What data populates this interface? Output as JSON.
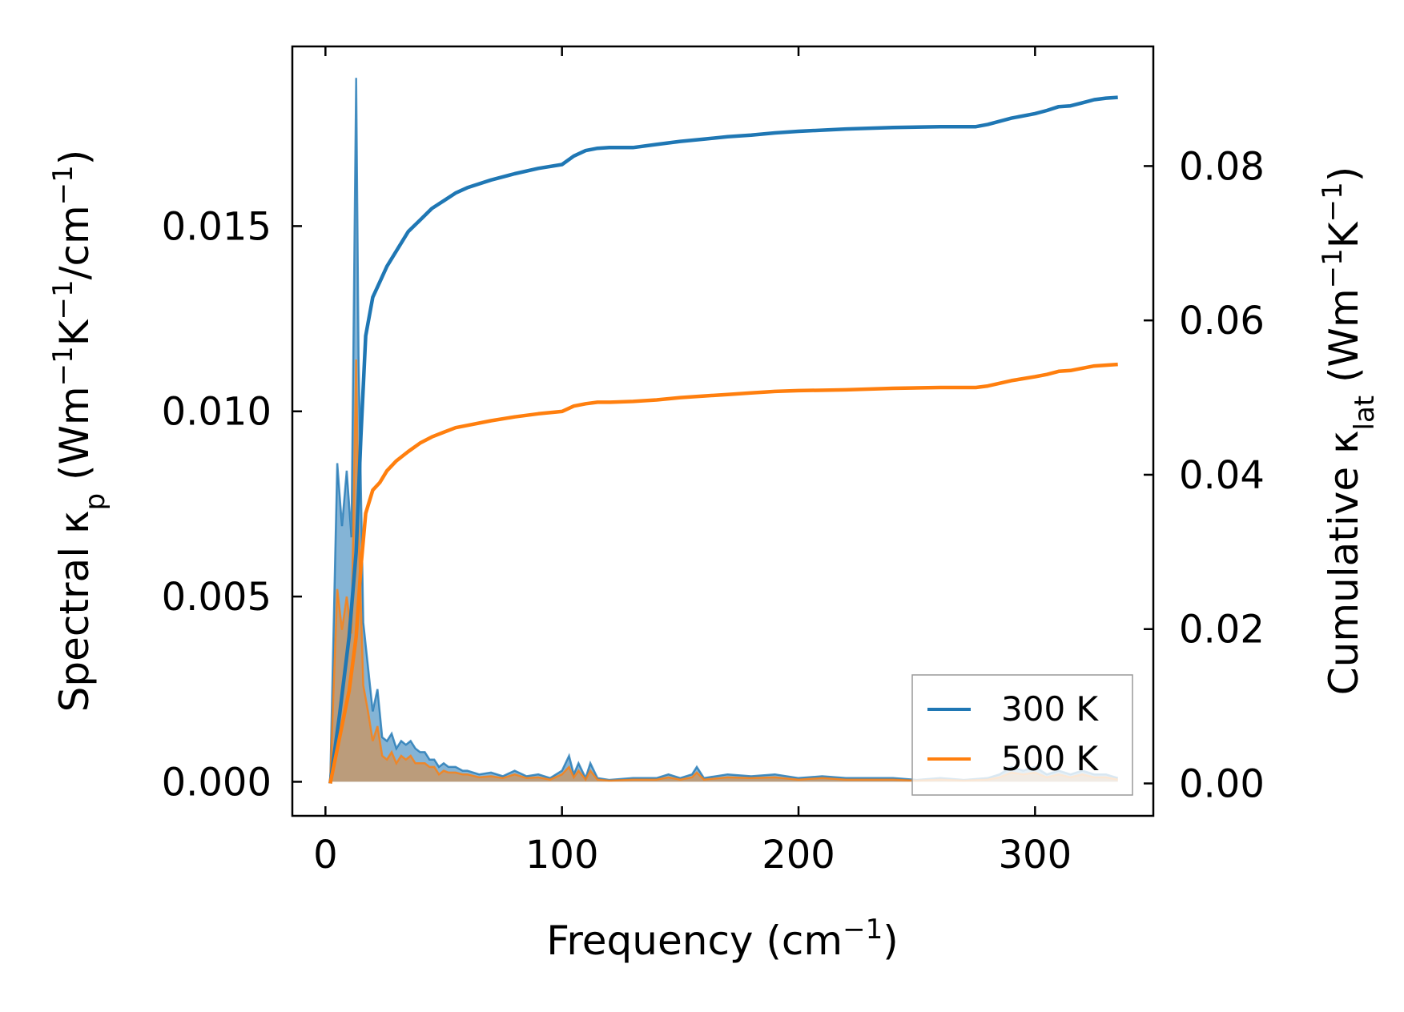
{
  "chart_data": {
    "type": "line",
    "xlabel_main": "Frequency (cm",
    "xlabel_sup": "−1",
    "xlabel_end": ")",
    "ylabel_left": {
      "prefix": "Spectral κ",
      "sub": "p",
      "mid1": " (Wm",
      "sup1": "−1",
      "mid2": "K",
      "sup2": "−1",
      "mid3": "/cm",
      "sup3": "−1",
      "end": ")"
    },
    "ylabel_right": {
      "prefix": "Cumulative κ",
      "sub": "lat",
      "mid1": " (Wm",
      "sup1": "−1",
      "mid2": "K",
      "sup2": "−1",
      "end": ")"
    },
    "xlim": [
      -14,
      350
    ],
    "ylim_left": [
      -0.00092,
      0.01985
    ],
    "ylim_right": [
      -0.0042,
      0.0955
    ],
    "xticks": [
      "0",
      "100",
      "200",
      "300"
    ],
    "xtick_values": [
      0,
      100,
      200,
      300
    ],
    "yticks_left": [
      "0.000",
      "0.005",
      "0.010",
      "0.015"
    ],
    "ytick_values_left": [
      0,
      0.005,
      0.01,
      0.015
    ],
    "yticks_right": [
      "0.00",
      "0.02",
      "0.04",
      "0.06",
      "0.08"
    ],
    "ytick_values_right": [
      0,
      0.02,
      0.04,
      0.06,
      0.08
    ],
    "legend_position": "lower right",
    "legend": [
      "300 K",
      "500 K"
    ],
    "colors": {
      "s300": "#1f77b4",
      "s500": "#ff7f0e"
    },
    "spectral": {
      "x": [
        2,
        5,
        7,
        9,
        11,
        13,
        14,
        16,
        18,
        20,
        22,
        24,
        26,
        28,
        30,
        32,
        34,
        36,
        38,
        40,
        42,
        44,
        46,
        48,
        50,
        52,
        55,
        58,
        60,
        65,
        70,
        75,
        80,
        85,
        90,
        95,
        100,
        103,
        105,
        107,
        110,
        112,
        115,
        120,
        130,
        140,
        145,
        150,
        155,
        157,
        160,
        170,
        180,
        190,
        200,
        210,
        220,
        240,
        250,
        260,
        270,
        280,
        285,
        290,
        295,
        300,
        305,
        310,
        315,
        320,
        325,
        330,
        335
      ],
      "series": [
        {
          "name": "300 K",
          "values": [
            0,
            0.0086,
            0.0069,
            0.0084,
            0.0066,
            0.019,
            0.0115,
            0.0043,
            0.0031,
            0.0019,
            0.0025,
            0.0012,
            0.0011,
            0.0013,
            0.0009,
            0.0011,
            0.001,
            0.0011,
            0.0009,
            0.0008,
            0.0008,
            0.0006,
            0.0006,
            0.0004,
            0.0005,
            0.0004,
            0.0004,
            0.0003,
            0.0003,
            0.0002,
            0.00025,
            0.00015,
            0.0003,
            0.00015,
            0.0002,
            0.0001,
            0.0003,
            0.0007,
            0.0002,
            0.0005,
            0.0001,
            0.0005,
            0.0001,
            5e-05,
            0.0001,
            0.0001,
            0.0002,
            0.0001,
            0.0002,
            0.0004,
            0.0001,
            0.0002,
            0.00015,
            0.0002,
            0.0001,
            0.00015,
            0.0001,
            0.0001,
            5e-05,
            0.0001,
            5e-05,
            0.0001,
            0.0002,
            0.0004,
            0.0003,
            0.0004,
            0.0002,
            0.0003,
            0.0002,
            0.0003,
            0.0002,
            0.0002,
            0.0001
          ]
        },
        {
          "name": "500 K",
          "values": [
            0,
            0.0052,
            0.0041,
            0.005,
            0.004,
            0.0114,
            0.0069,
            0.0026,
            0.0019,
            0.0011,
            0.0015,
            0.0007,
            0.0006,
            0.0008,
            0.0005,
            0.0007,
            0.0006,
            0.0007,
            0.0005,
            0.0005,
            0.0005,
            0.0004,
            0.0004,
            0.0002,
            0.0003,
            0.00025,
            0.00025,
            0.0002,
            0.0002,
            0.00012,
            0.00015,
            0.0001,
            0.0002,
            0.0001,
            0.00012,
            6e-05,
            0.0002,
            0.0004,
            0.00012,
            0.0003,
            6e-05,
            0.0003,
            6e-05,
            3e-05,
            6e-05,
            6e-05,
            0.00012,
            6e-05,
            0.00012,
            0.00025,
            6e-05,
            0.00012,
            0.0001,
            0.00012,
            6e-05,
            0.0001,
            6e-05,
            6e-05,
            3e-05,
            6e-05,
            3e-05,
            6e-05,
            0.00012,
            0.00025,
            0.0002,
            0.00025,
            0.00012,
            0.0002,
            0.00012,
            0.0002,
            0.00012,
            0.00012,
            6e-05
          ]
        }
      ]
    },
    "cumulative": {
      "x": [
        2,
        6,
        10,
        13,
        15,
        17,
        20,
        23,
        26,
        30,
        35,
        40,
        45,
        50,
        55,
        60,
        70,
        80,
        90,
        100,
        105,
        110,
        115,
        120,
        130,
        140,
        150,
        160,
        170,
        180,
        190,
        200,
        220,
        240,
        260,
        275,
        280,
        290,
        300,
        305,
        310,
        315,
        320,
        325,
        330,
        335
      ],
      "series": [
        {
          "name": "300 K",
          "values": [
            0,
            0.009,
            0.019,
            0.03,
            0.045,
            0.058,
            0.063,
            0.065,
            0.067,
            0.069,
            0.0715,
            0.073,
            0.0745,
            0.0755,
            0.0765,
            0.0772,
            0.0782,
            0.079,
            0.0797,
            0.0802,
            0.0813,
            0.082,
            0.0823,
            0.0824,
            0.0824,
            0.0828,
            0.0832,
            0.0835,
            0.0838,
            0.084,
            0.0843,
            0.0845,
            0.0848,
            0.085,
            0.0851,
            0.0851,
            0.0854,
            0.0862,
            0.0868,
            0.0872,
            0.0877,
            0.0878,
            0.0882,
            0.0886,
            0.0888,
            0.0889
          ]
        },
        {
          "name": "500 K",
          "values": [
            0,
            0.006,
            0.012,
            0.019,
            0.028,
            0.035,
            0.038,
            0.039,
            0.0405,
            0.0418,
            0.043,
            0.0441,
            0.0449,
            0.0455,
            0.0461,
            0.0464,
            0.047,
            0.0475,
            0.0479,
            0.0482,
            0.0489,
            0.0492,
            0.0494,
            0.0494,
            0.0495,
            0.0497,
            0.05,
            0.0502,
            0.0504,
            0.0506,
            0.0508,
            0.0509,
            0.051,
            0.0512,
            0.0513,
            0.0513,
            0.0515,
            0.0522,
            0.0527,
            0.053,
            0.0534,
            0.0535,
            0.0538,
            0.0541,
            0.0542,
            0.0543
          ]
        }
      ]
    }
  }
}
